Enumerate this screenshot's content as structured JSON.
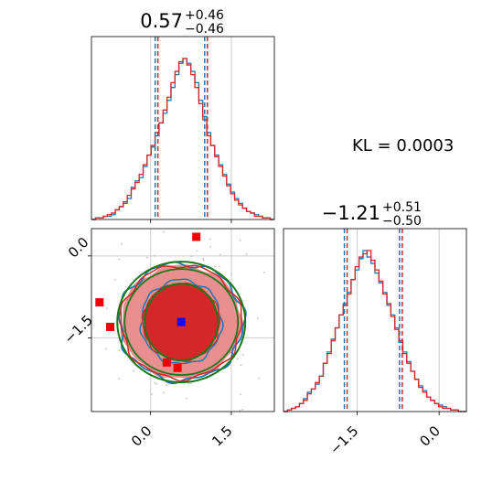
{
  "chart_data": {
    "type": "corner",
    "kl_text": "KL = 0.0003",
    "params": [
      {
        "title_main": "0.57",
        "title_plus": "+0.46",
        "title_minus": "−0.46",
        "median": 0.57,
        "lo": 0.11,
        "hi": 1.03,
        "range": [
          -1.1,
          2.3
        ]
      },
      {
        "title_main": "−1.21",
        "title_plus": "+0.51",
        "title_minus": "−0.50",
        "median": -1.21,
        "lo": -1.71,
        "hi": -0.7,
        "range": [
          -2.85,
          0.5
        ]
      }
    ],
    "ticks": {
      "x0": {
        "values": [
          0.0,
          1.5
        ],
        "labels": [
          "0.0",
          "1.5"
        ]
      },
      "x1": {
        "values": [
          -1.5,
          0.0
        ],
        "labels": [
          "−1.5",
          "0.0"
        ]
      },
      "y1": {
        "values": [
          0.0,
          -1.5
        ],
        "labels": [
          "0.0",
          "−1.5"
        ]
      }
    },
    "colors": {
      "blue": "#1f77b4",
      "red": "#d62728",
      "green": "#1a7a1a",
      "grid": "#cccccc"
    },
    "series": [
      {
        "color": "blue",
        "hist0": [
          0,
          1,
          1,
          2,
          2,
          3,
          6,
          8,
          10,
          13,
          20,
          24,
          26,
          33,
          40,
          45,
          52,
          60,
          66,
          74,
          82,
          90,
          97,
          100,
          97,
          92,
          85,
          74,
          64,
          54,
          46,
          40,
          34,
          28,
          22,
          17,
          13,
          10,
          7,
          5,
          4,
          3,
          2,
          1,
          1,
          0
        ],
        "hist1": [
          0,
          1,
          2,
          3,
          5,
          8,
          12,
          14,
          17,
          22,
          30,
          37,
          45,
          52,
          60,
          67,
          74,
          82,
          88,
          95,
          100,
          96,
          92,
          86,
          80,
          74,
          66,
          60,
          52,
          43,
          37,
          31,
          25,
          20,
          16,
          13,
          9,
          7,
          5,
          4,
          3,
          2,
          1,
          1,
          0,
          0
        ]
      },
      {
        "color": "red",
        "hist0": [
          0,
          1,
          1,
          2,
          3,
          4,
          6,
          8,
          11,
          15,
          19,
          23,
          28,
          34,
          40,
          46,
          54,
          60,
          68,
          76,
          85,
          92,
          98,
          100,
          96,
          90,
          82,
          72,
          62,
          52,
          46,
          39,
          33,
          27,
          21,
          16,
          12,
          9,
          7,
          5,
          4,
          2,
          2,
          1,
          1,
          0
        ],
        "hist1": [
          0,
          1,
          2,
          3,
          5,
          7,
          11,
          14,
          18,
          22,
          30,
          36,
          44,
          52,
          60,
          66,
          73,
          82,
          90,
          96,
          98,
          100,
          94,
          88,
          81,
          73,
          67,
          59,
          51,
          44,
          36,
          30,
          25,
          20,
          15,
          12,
          9,
          7,
          5,
          3,
          2,
          2,
          1,
          1,
          0,
          0
        ]
      }
    ],
    "points": [
      {
        "color": "blue",
        "x": 0.57,
        "y": -1.21
      },
      {
        "color": "red",
        "x": 0.85,
        "y": 0.35
      },
      {
        "color": "red",
        "x": -0.95,
        "y": -0.85
      },
      {
        "color": "red",
        "x": -0.75,
        "y": -1.3
      },
      {
        "color": "red",
        "x": 0.5,
        "y": -2.05
      },
      {
        "color": "red",
        "x": 0.3,
        "y": -1.95
      }
    ]
  }
}
